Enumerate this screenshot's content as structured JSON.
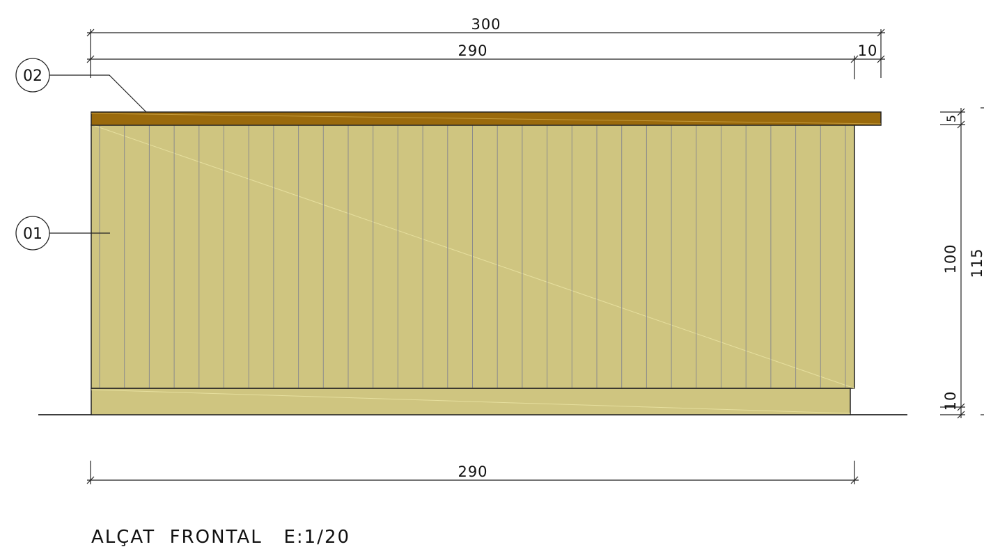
{
  "drawing": {
    "title": "ALÇAT  FRONTAL   E:1/20",
    "colors": {
      "panel_fill": "#cfc580",
      "top_fill": "#9a6a0c",
      "slat_line": "#8c8c8c",
      "outline": "#222222"
    },
    "dimensions": {
      "overall_width": "300",
      "panel_width_top": "290",
      "overhang": "10",
      "panel_width_bottom": "290",
      "top_thickness": "5",
      "panel_height": "100",
      "overall_height": "115",
      "base_height": "10"
    },
    "callouts": {
      "panel": "01",
      "top": "02"
    }
  }
}
